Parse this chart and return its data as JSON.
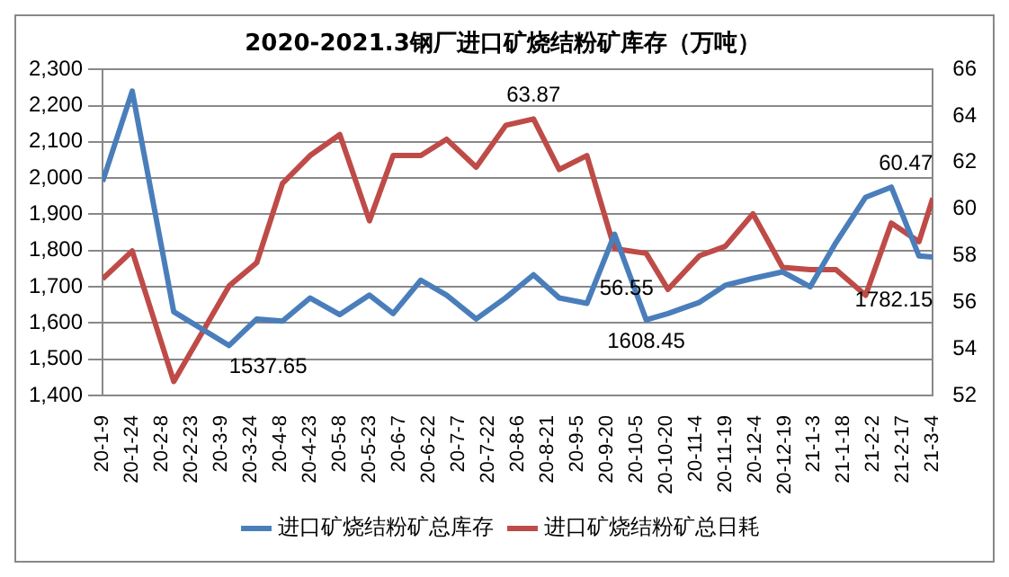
{
  "chart_data": {
    "type": "line",
    "title": "2020-2021.3钢厂进口矿烧结粉矿库存（万吨）",
    "x": [
      "2020-01-09",
      "2020-01-24",
      "2020-02-14",
      "2020-03-13",
      "2020-03-27",
      "2020-04-09",
      "2020-04-23",
      "2020-05-08",
      "2020-05-23",
      "2020-06-04",
      "2020-06-18",
      "2020-07-01",
      "2020-07-16",
      "2020-07-31",
      "2020-08-14",
      "2020-08-27",
      "2020-09-10",
      "2020-09-24",
      "2020-10-10",
      "2020-10-21",
      "2020-11-06",
      "2020-11-19",
      "2020-12-03",
      "2020-12-18",
      "2021-01-01",
      "2021-01-14",
      "2021-01-29",
      "2021-02-11",
      "2021-02-25",
      "2021-03-04"
    ],
    "series": [
      {
        "name": "进口矿烧结粉矿总库存",
        "color": "#4a7ebb",
        "values": [
          1990,
          2240,
          1631,
          1537.65,
          1611,
          1605,
          1669,
          1623,
          1677,
          1626,
          1718,
          1677,
          1611,
          1670,
          1733,
          1669,
          1654,
          1845,
          1608.45,
          1626,
          1657,
          1704,
          1723,
          1741,
          1700,
          1822,
          1947,
          1975,
          1785,
          1782.15
        ],
        "value_labels": [
          null,
          null,
          null,
          "1537.65",
          null,
          null,
          null,
          null,
          null,
          null,
          null,
          null,
          null,
          null,
          null,
          null,
          null,
          null,
          "1608.45",
          null,
          null,
          null,
          null,
          null,
          null,
          null,
          null,
          null,
          null,
          "1782.15"
        ]
      },
      {
        "name": "进口矿烧结粉矿总日耗",
        "color": "#be4b48",
        "axis": "y2",
        "values": [
          57.0,
          58.2,
          52.6,
          56.7,
          57.7,
          61.1,
          62.3,
          63.2,
          59.5,
          62.3,
          62.3,
          63.0,
          61.8,
          63.6,
          63.87,
          61.7,
          62.3,
          58.3,
          58.1,
          56.55,
          58.0,
          58.4,
          59.8,
          57.5,
          57.4,
          57.4,
          56.3,
          59.4,
          58.6,
          60.47
        ],
        "value_labels": [
          null,
          null,
          null,
          null,
          null,
          null,
          null,
          null,
          null,
          null,
          null,
          null,
          null,
          null,
          "63.87",
          null,
          null,
          null,
          null,
          "56.55",
          null,
          null,
          null,
          null,
          null,
          null,
          null,
          null,
          null,
          "60.47"
        ]
      }
    ],
    "xlim": [
      "2020-01-09",
      "2021-03-04"
    ],
    "xticks": [
      {
        "value": "2020-01-09",
        "label": "20-1-9"
      },
      {
        "value": "2020-01-24",
        "label": "20-1-24"
      },
      {
        "value": "2020-02-08",
        "label": "20-2-8"
      },
      {
        "value": "2020-02-23",
        "label": "20-2-23"
      },
      {
        "value": "2020-03-09",
        "label": "20-3-9"
      },
      {
        "value": "2020-03-24",
        "label": "20-3-24"
      },
      {
        "value": "2020-04-08",
        "label": "20-4-8"
      },
      {
        "value": "2020-04-23",
        "label": "20-4-23"
      },
      {
        "value": "2020-05-08",
        "label": "20-5-8"
      },
      {
        "value": "2020-05-23",
        "label": "20-5-23"
      },
      {
        "value": "2020-06-07",
        "label": "20-6-7"
      },
      {
        "value": "2020-06-22",
        "label": "20-6-22"
      },
      {
        "value": "2020-07-07",
        "label": "20-7-7"
      },
      {
        "value": "2020-07-22",
        "label": "20-7-22"
      },
      {
        "value": "2020-08-06",
        "label": "20-8-6"
      },
      {
        "value": "2020-08-21",
        "label": "20-8-21"
      },
      {
        "value": "2020-09-05",
        "label": "20-9-5"
      },
      {
        "value": "2020-09-20",
        "label": "20-9-20"
      },
      {
        "value": "2020-10-05",
        "label": "20-10-5"
      },
      {
        "value": "2020-10-20",
        "label": "20-10-20"
      },
      {
        "value": "2020-11-04",
        "label": "20-11-4"
      },
      {
        "value": "2020-11-19",
        "label": "20-11-19"
      },
      {
        "value": "2020-12-04",
        "label": "20-12-4"
      },
      {
        "value": "2020-12-19",
        "label": "20-12-19"
      },
      {
        "value": "2021-01-03",
        "label": "21-1-3"
      },
      {
        "value": "2021-01-18",
        "label": "21-1-18"
      },
      {
        "value": "2021-02-02",
        "label": "21-2-2"
      },
      {
        "value": "2021-02-17",
        "label": "21-2-17"
      },
      {
        "value": "2021-03-04",
        "label": "21-3-4"
      }
    ],
    "ylim": [
      1400,
      2300
    ],
    "yticks": [
      {
        "value": 1400,
        "label": "1,400"
      },
      {
        "value": 1500,
        "label": "1,500"
      },
      {
        "value": 1600,
        "label": "1,600"
      },
      {
        "value": 1700,
        "label": "1,700"
      },
      {
        "value": 1800,
        "label": "1,800"
      },
      {
        "value": 1900,
        "label": "1,900"
      },
      {
        "value": 2000,
        "label": "2,000"
      },
      {
        "value": 2100,
        "label": "2,100"
      },
      {
        "value": 2200,
        "label": "2,200"
      },
      {
        "value": 2300,
        "label": "2,300"
      }
    ],
    "y2lim": [
      52,
      66
    ],
    "y2ticks": [
      52,
      54,
      56,
      58,
      60,
      62,
      64,
      66
    ],
    "grid": "y",
    "legend": "bottom"
  }
}
